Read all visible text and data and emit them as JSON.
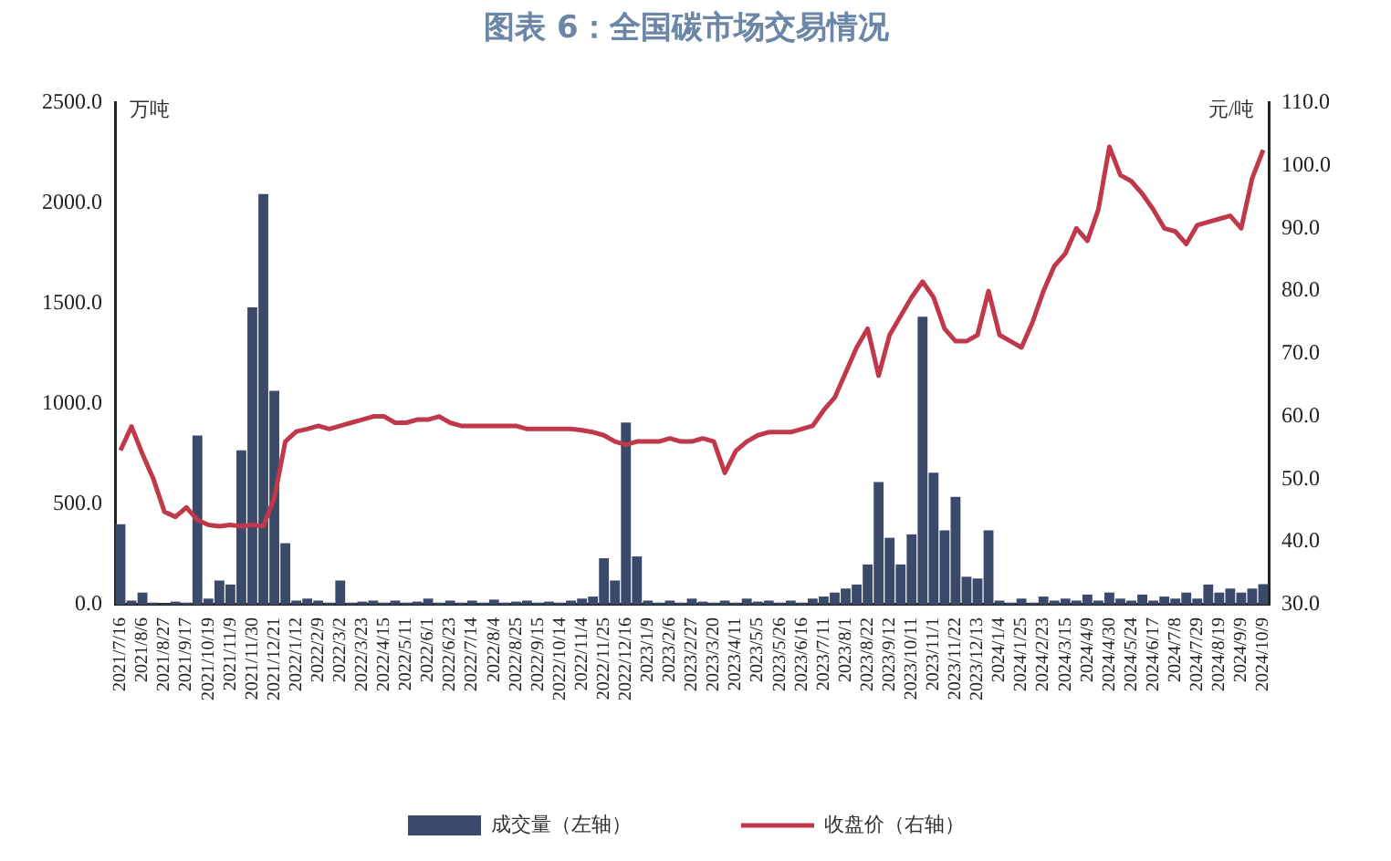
{
  "chart_data": {
    "type": "bar",
    "title": "图表 6：全国碳市场交易情况",
    "ylabel": "万吨",
    "y2label": "元/吨",
    "categories": [
      "2021/7/16",
      null,
      "2021/8/6",
      null,
      "2021/8/27",
      null,
      "2021/9/17",
      null,
      "2021/10/19",
      null,
      "2021/11/9",
      null,
      "2021/11/30",
      null,
      "2021/12/21",
      null,
      "2022/1/12",
      null,
      "2022/2/9",
      null,
      "2022/3/2",
      null,
      "2022/3/23",
      null,
      "2022/4/15",
      null,
      "2022/5/11",
      null,
      "2022/6/1",
      null,
      "2022/6/23",
      null,
      "2022/7/14",
      null,
      "2022/8/4",
      null,
      "2022/8/25",
      null,
      "2022/9/15",
      null,
      "2022/10/14",
      null,
      "2022/11/4",
      null,
      "2022/11/25",
      null,
      "2022/12/16",
      null,
      "2023/1/9",
      null,
      "2023/2/6",
      null,
      "2023/2/27",
      null,
      "2023/3/20",
      null,
      "2023/4/11",
      null,
      "2023/5/5",
      null,
      "2023/5/26",
      null,
      "2023/6/16",
      null,
      "2023/7/11",
      null,
      "2023/8/1",
      null,
      "2023/8/22",
      null,
      "2023/9/12",
      null,
      "2023/10/11",
      null,
      "2023/11/1",
      null,
      "2023/11/22",
      null,
      "2023/12/13",
      null,
      "2024/1/4",
      null,
      "2024/1/25",
      null,
      "2024/2/23",
      null,
      "2024/3/15",
      null,
      "2024/4/9",
      null,
      "2024/4/30",
      null,
      "2024/5/24",
      null,
      "2024/6/17",
      null,
      "2024/7/8",
      null,
      "2024/7/29",
      null,
      "2024/8/19",
      null,
      "2024/9/9",
      null,
      "2024/10/9"
    ],
    "series": [
      {
        "name": "成交量（左轴）",
        "axis": "y",
        "color": "#3b4a6b",
        "values": [
          400,
          20,
          60,
          10,
          5,
          15,
          10,
          843,
          30,
          120,
          100,
          769,
          1481,
          2046,
          1065,
          306,
          20,
          30,
          20,
          10,
          120,
          10,
          15,
          20,
          10,
          20,
          10,
          15,
          30,
          10,
          20,
          10,
          20,
          10,
          25,
          10,
          15,
          20,
          10,
          15,
          10,
          20,
          30,
          40,
          231,
          120,
          907,
          240,
          20,
          10,
          20,
          10,
          30,
          15,
          10,
          20,
          10,
          30,
          15,
          20,
          10,
          20,
          10,
          30,
          40,
          60,
          80,
          100,
          200,
          611,
          333,
          200,
          350,
          1435,
          657,
          370,
          537,
          139,
          130,
          370,
          20,
          10,
          30,
          10,
          40,
          20,
          30,
          20,
          50,
          20,
          60,
          30,
          20,
          50,
          20,
          40,
          30,
          60,
          30,
          100,
          60,
          80,
          60,
          80,
          102
        ]
      },
      {
        "name": "收盘价（右轴）",
        "type": "line",
        "axis": "y2",
        "color": "#c0394b",
        "values": [
          54.6,
          58.4,
          54,
          50,
          44.8,
          44,
          45.5,
          43.5,
          42.7,
          42.5,
          42.7,
          42.5,
          42.7,
          42.5,
          47,
          56,
          57.6,
          58,
          58.5,
          58,
          58.5,
          59,
          59.5,
          60,
          60,
          59,
          59,
          59.5,
          59.5,
          60,
          59,
          58.5,
          58.5,
          58.5,
          58.5,
          58.5,
          58.5,
          58,
          58,
          58,
          58,
          58,
          57.8,
          57.5,
          57,
          56,
          55.5,
          56,
          56,
          56,
          56.5,
          56,
          56,
          56.5,
          56,
          51,
          54.5,
          56,
          57,
          57.5,
          57.5,
          57.5,
          58,
          58.5,
          61,
          63,
          67,
          71,
          74,
          66.5,
          73,
          76,
          79,
          81.5,
          79,
          74,
          72,
          72,
          73,
          80,
          73,
          72,
          71,
          75,
          80,
          84,
          86,
          90,
          88,
          93,
          103,
          98.5,
          97.5,
          95.5,
          93,
          90,
          89.5,
          87.5,
          90.5,
          91,
          91.5,
          92,
          90,
          98,
          102.5
        ]
      }
    ],
    "ylim": [
      0,
      2500
    ],
    "yticks": [
      {
        "value": 0,
        "label": "0.0"
      },
      {
        "value": 500,
        "label": "500.0"
      },
      {
        "value": 1000,
        "label": "1000.0"
      },
      {
        "value": 1500,
        "label": "1500.0"
      },
      {
        "value": 2000,
        "label": "2000.0"
      },
      {
        "value": 2500,
        "label": "2500.0"
      }
    ],
    "y2lim": [
      30,
      110
    ],
    "y2ticks": [
      {
        "value": 30,
        "label": "30.0"
      },
      {
        "value": 40,
        "label": "40.0"
      },
      {
        "value": 50,
        "label": "50.0"
      },
      {
        "value": 60,
        "label": "60.0"
      },
      {
        "value": 70,
        "label": "70.0"
      },
      {
        "value": 80,
        "label": "80.0"
      },
      {
        "value": 90,
        "label": "90.0"
      },
      {
        "value": 100,
        "label": "100.0"
      },
      {
        "value": 110,
        "label": "110.0"
      }
    ],
    "legend": "bottom",
    "marker": "none",
    "line_style": "solid"
  }
}
